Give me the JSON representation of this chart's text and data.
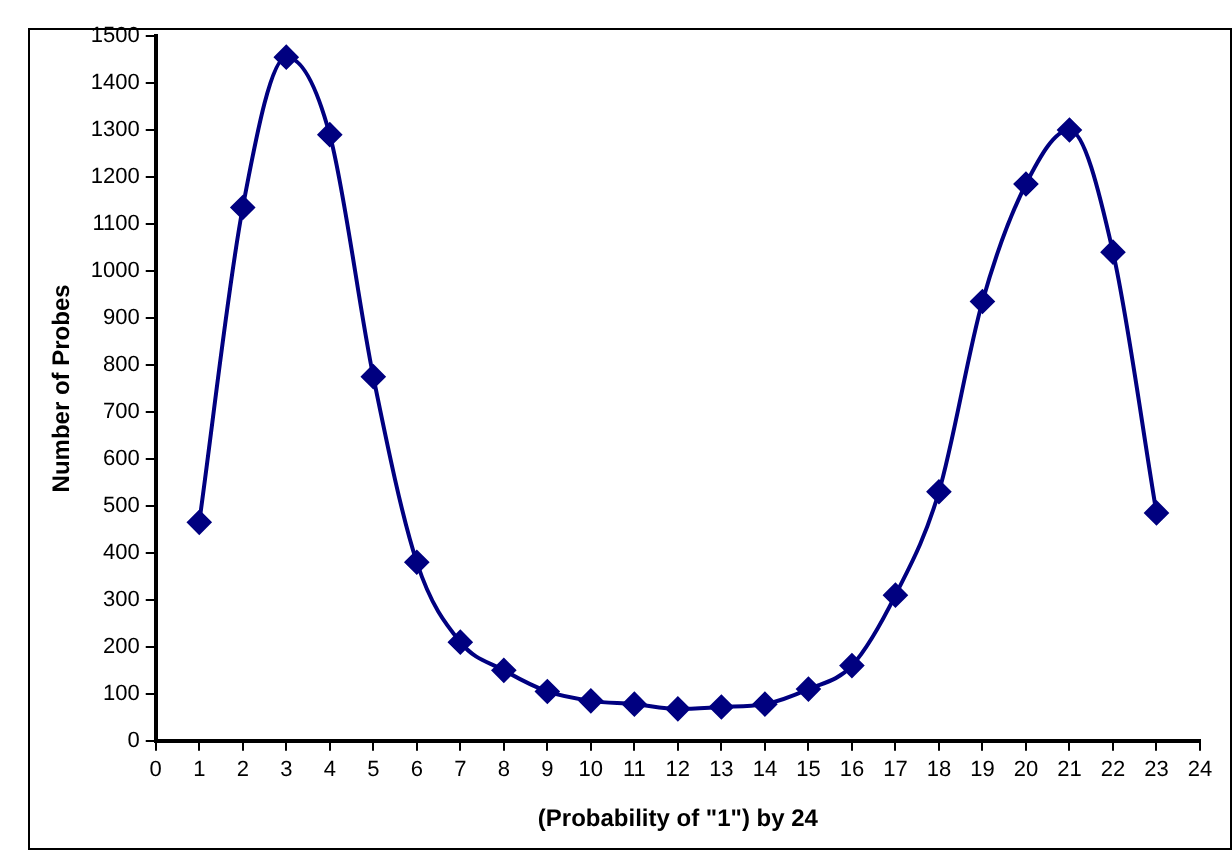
{
  "chart_data": {
    "type": "line",
    "xlabel": "(Probability of \"1\") by 24",
    "ylabel": "Number of Probes",
    "x": [
      1,
      2,
      3,
      4,
      5,
      6,
      7,
      8,
      9,
      10,
      11,
      12,
      13,
      14,
      15,
      16,
      17,
      18,
      19,
      20,
      21,
      22,
      23
    ],
    "series": [
      {
        "color": "#000080",
        "values": [
          465,
          1135,
          1455,
          1290,
          775,
          380,
          210,
          150,
          105,
          85,
          78,
          68,
          72,
          78,
          110,
          160,
          310,
          530,
          935,
          1185,
          1300,
          1040,
          485
        ]
      }
    ],
    "xlim": [
      0,
      24
    ],
    "xticks": [
      0,
      1,
      2,
      3,
      4,
      5,
      6,
      7,
      8,
      9,
      10,
      11,
      12,
      13,
      14,
      15,
      16,
      17,
      18,
      19,
      20,
      21,
      22,
      23,
      24
    ],
    "ylim": [
      0,
      1500
    ],
    "yticks": [
      0,
      100,
      200,
      300,
      400,
      500,
      600,
      700,
      800,
      900,
      1000,
      1100,
      1200,
      1300,
      1400,
      1500
    ],
    "grid": false,
    "legend": false,
    "marker": "diamond",
    "line_style": "solid"
  }
}
